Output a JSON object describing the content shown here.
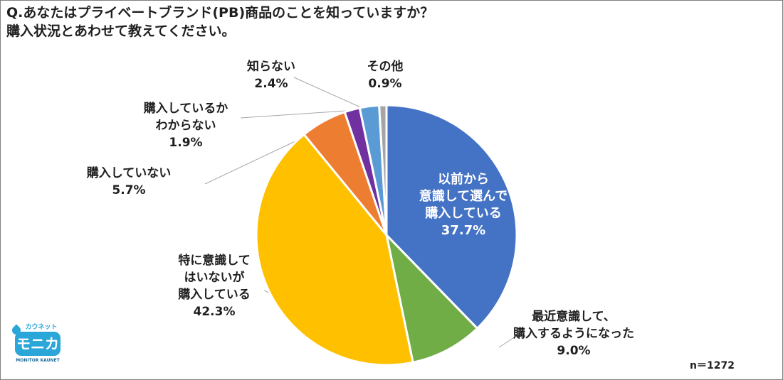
{
  "question": {
    "line1": "Q.あなたはプライベートブランド(PB)商品のことを知っていますか？",
    "line2": "購入状況とあわせて教えてください。"
  },
  "sample_size": "n＝1272",
  "logo": {
    "top": "カウネット",
    "main": "モニカ",
    "bottom": "MONITOR KAUNET"
  },
  "chart_data": {
    "type": "pie",
    "title": "",
    "start_angle_deg": 0,
    "direction": "clockwise",
    "slices": [
      {
        "label": "以前から\n意識して選んで\n購入している",
        "value_label": "37.7%",
        "value": 37.7,
        "color": "#4472c4"
      },
      {
        "label": "最近意識して、\n購入するようになった",
        "value_label": "9.0%",
        "value": 9.0,
        "color": "#70ad47"
      },
      {
        "label": "特に意識して\nはいないが\n購入している",
        "value_label": "42.3%",
        "value": 42.3,
        "color": "#ffc000"
      },
      {
        "label": "購入していない",
        "value_label": "5.7%",
        "value": 5.7,
        "color": "#ed7d31"
      },
      {
        "label": "購入しているか\nわからない",
        "value_label": "1.9%",
        "value": 1.9,
        "color": "#7030a0"
      },
      {
        "label": "知らない",
        "value_label": "2.4%",
        "value": 2.4,
        "color": "#5b9bd5"
      },
      {
        "label": "その他",
        "value_label": "0.9%",
        "value": 0.9,
        "color": "#a5a5a5"
      }
    ]
  }
}
